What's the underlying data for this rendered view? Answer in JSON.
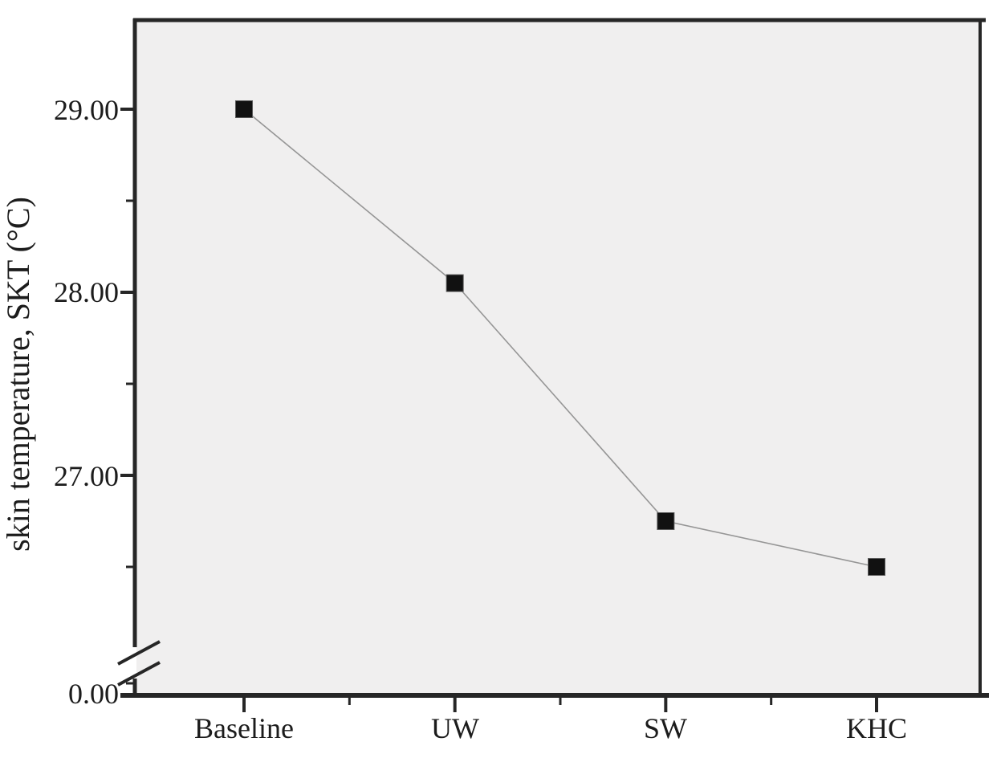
{
  "chart_data": {
    "type": "line",
    "title": "",
    "xlabel": "",
    "ylabel": "skin temperature, SKT (°C)",
    "categories": [
      "Baseline",
      "UW",
      "SW",
      "KHC"
    ],
    "series": [
      {
        "name": "skin temperature, SKT",
        "values": [
          29.0,
          28.05,
          26.75,
          26.5
        ]
      }
    ],
    "y_axis": {
      "major_ticks": [
        {
          "label": "29.00",
          "value": 29.0
        },
        {
          "label": "28.00",
          "value": 28.0
        },
        {
          "label": "27.00",
          "value": 27.0
        },
        {
          "label": "0.00",
          "value": 0.0
        }
      ],
      "minor_tick_values": [
        28.5,
        27.5,
        26.5
      ],
      "axis_break": true,
      "break_between": [
        0.0,
        26.5
      ]
    },
    "legend": null,
    "grid": false,
    "marker": "filled-square",
    "line_style": "thin-solid",
    "colors": {
      "marker": "#111111",
      "line": "#969696",
      "axis": "#262626",
      "plot_background": "#f0efef",
      "page_background": "#ffffff",
      "text": "#1c1c1c"
    }
  }
}
